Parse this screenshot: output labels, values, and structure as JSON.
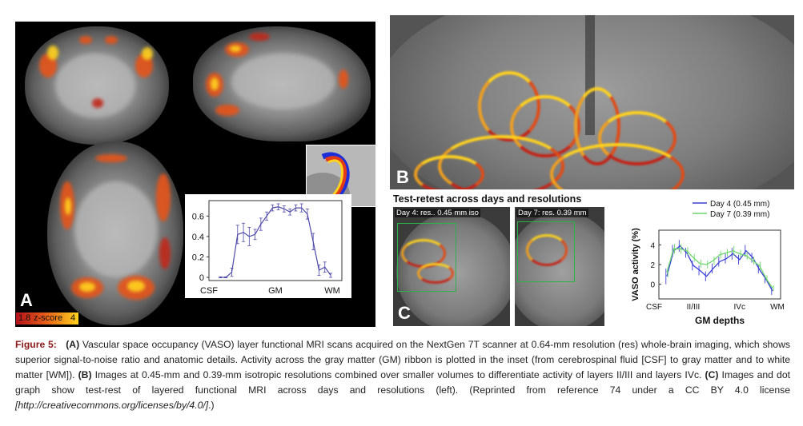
{
  "panel_a": {
    "letter": "A",
    "zscore": {
      "min": "1.8",
      "label": "z-score",
      "max": "4"
    },
    "graph": {
      "y_ticks": [
        "0",
        "0.2",
        "0.4",
        "0.6"
      ],
      "x_labels": [
        "CSF",
        "GM",
        "WM"
      ]
    }
  },
  "panel_b": {
    "letter": "B"
  },
  "panel_c": {
    "letter": "C",
    "title": "Test-retest across days and resolutions",
    "image1_label": "Day 4: res.. 0.45 mm iso",
    "image2_label": "Day 7: res. 0.39 mm",
    "graph": {
      "legend": [
        "Day 4 (0.45 mm)",
        "Day 7 (0.39 mm)"
      ],
      "ylabel": "VASO activity (%)",
      "y_ticks": [
        "0",
        "2",
        "4"
      ],
      "x_ticks": [
        "CSF",
        "II/III",
        "IVc",
        "WM"
      ],
      "xlabel": "GM depths"
    }
  },
  "caption": {
    "figure": "Figure 5:",
    "a_tag": "(A)",
    "a_text": " Vascular space occupancy (VASO) layer functional MRI scans acquired on the NextGen 7T scanner at 0.64-mm resolution (res) whole-brain imaging, which shows superior signal-to-noise ratio and anatomic details. Activity across the gray matter (GM) ribbon is plotted in the inset (from cerebrospinal fluid [CSF] to gray matter and to white matter [WM]). ",
    "b_tag": "(B)",
    "b_text": " Images at 0.45-mm and 0.39-mm isotropic resolutions combined over smaller volumes to differentiate activity of layers II/III and layers IVc. ",
    "c_tag": "(C)",
    "c_text": " Images and dot graph show test-rest of layered functional MRI across days and resolutions (left). (Reprinted from reference 74 under a CC BY 4.0 license ",
    "link": "[http://creativecommons.org/licenses/by/4.0/]",
    "end": ".)"
  },
  "chart_data": [
    {
      "type": "line",
      "x_categories": [
        "CSF",
        "GM",
        "WM"
      ],
      "x": [
        1,
        2,
        3,
        4,
        5,
        6,
        7,
        8,
        9,
        10,
        11,
        12,
        13,
        14,
        15,
        16,
        17,
        18,
        19,
        20
      ],
      "series": [
        {
          "values": [
            0,
            0,
            0.05,
            0.42,
            0.44,
            0.4,
            0.42,
            0.52,
            0.6,
            0.68,
            0.69,
            0.67,
            0.64,
            0.68,
            0.68,
            0.62,
            0.35,
            0.07,
            0.1,
            0.02
          ],
          "errors": [
            0.005,
            0.005,
            0.04,
            0.09,
            0.09,
            0.09,
            0.05,
            0.06,
            0.04,
            0.03,
            0.03,
            0.03,
            0.03,
            0.03,
            0.04,
            0.05,
            0.08,
            0.05,
            0.05,
            0.02
          ]
        }
      ],
      "ylim": [
        0,
        0.72
      ],
      "color": "#4e4aa8"
    },
    {
      "type": "line",
      "x": [
        1,
        2,
        3,
        4,
        5,
        6,
        7,
        8,
        9,
        10,
        11,
        12,
        13,
        14,
        15,
        16,
        17
      ],
      "series": [
        {
          "name": "Day 4 (0.45 mm)",
          "color": "#3a3fd6",
          "values": [
            0.8,
            3.4,
            3.9,
            3.2,
            1.9,
            1.4,
            0.8,
            1.6,
            2.3,
            2.6,
            3.1,
            2.5,
            3.4,
            2.7,
            1.5,
            0.5,
            -0.7
          ],
          "errors": [
            0.8,
            0.6,
            0.6,
            0.5,
            0.5,
            0.5,
            0.5,
            0.5,
            0.5,
            0.5,
            0.6,
            0.5,
            0.6,
            0.5,
            0.4,
            0.4,
            0.4
          ]
        },
        {
          "name": "Day 7 (0.39 mm)",
          "color": "#6dd66d",
          "values": [
            1.2,
            3.6,
            3.6,
            3.4,
            2.7,
            2.1,
            2.0,
            2.4,
            3.0,
            3.2,
            3.4,
            3.1,
            2.9,
            2.4,
            1.9,
            0.6,
            -0.4
          ],
          "errors": [
            0.5,
            0.5,
            0.5,
            0.4,
            0.4,
            0.4,
            0.4,
            0.4,
            0.4,
            0.4,
            0.5,
            0.4,
            0.4,
            0.4,
            0.4,
            0.3,
            0.3
          ]
        }
      ],
      "x_ticks": [
        "CSF",
        "II/III",
        "IVc",
        "WM"
      ],
      "xlabel": "GM depths",
      "ylabel": "VASO activity (%)",
      "ylim": [
        -1.5,
        5.5
      ],
      "legend": "top-right"
    }
  ]
}
